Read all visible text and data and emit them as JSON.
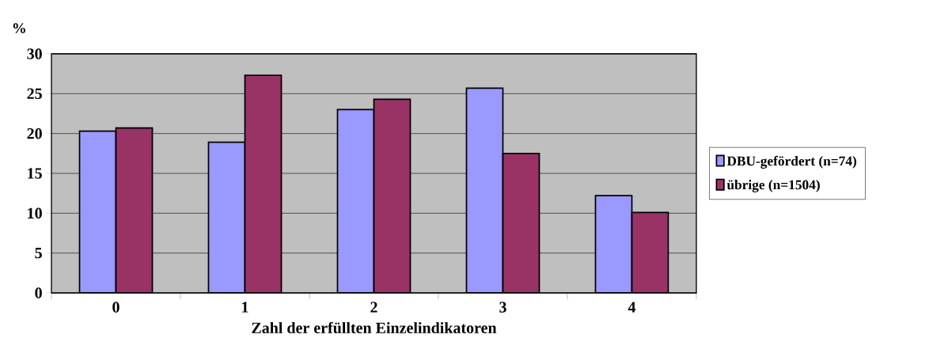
{
  "chart_data": {
    "type": "bar",
    "ylabel": "%",
    "xlabel": "Zahl der erfüllten Einzelindikatoren",
    "categories": [
      "0",
      "1",
      "2",
      "3",
      "4"
    ],
    "series": [
      {
        "name": "DBU-gefördert (n=74)",
        "color": "#9999ff",
        "values": [
          20.3,
          18.9,
          23.0,
          25.7,
          12.2
        ]
      },
      {
        "name": "übrige (n=1504)",
        "color": "#993366",
        "values": [
          20.7,
          27.3,
          24.3,
          17.5,
          10.1
        ]
      }
    ],
    "ylim": [
      0,
      30
    ],
    "yticks": [
      0,
      5,
      10,
      15,
      20,
      25,
      30
    ],
    "grid": "y",
    "legend": "right"
  }
}
